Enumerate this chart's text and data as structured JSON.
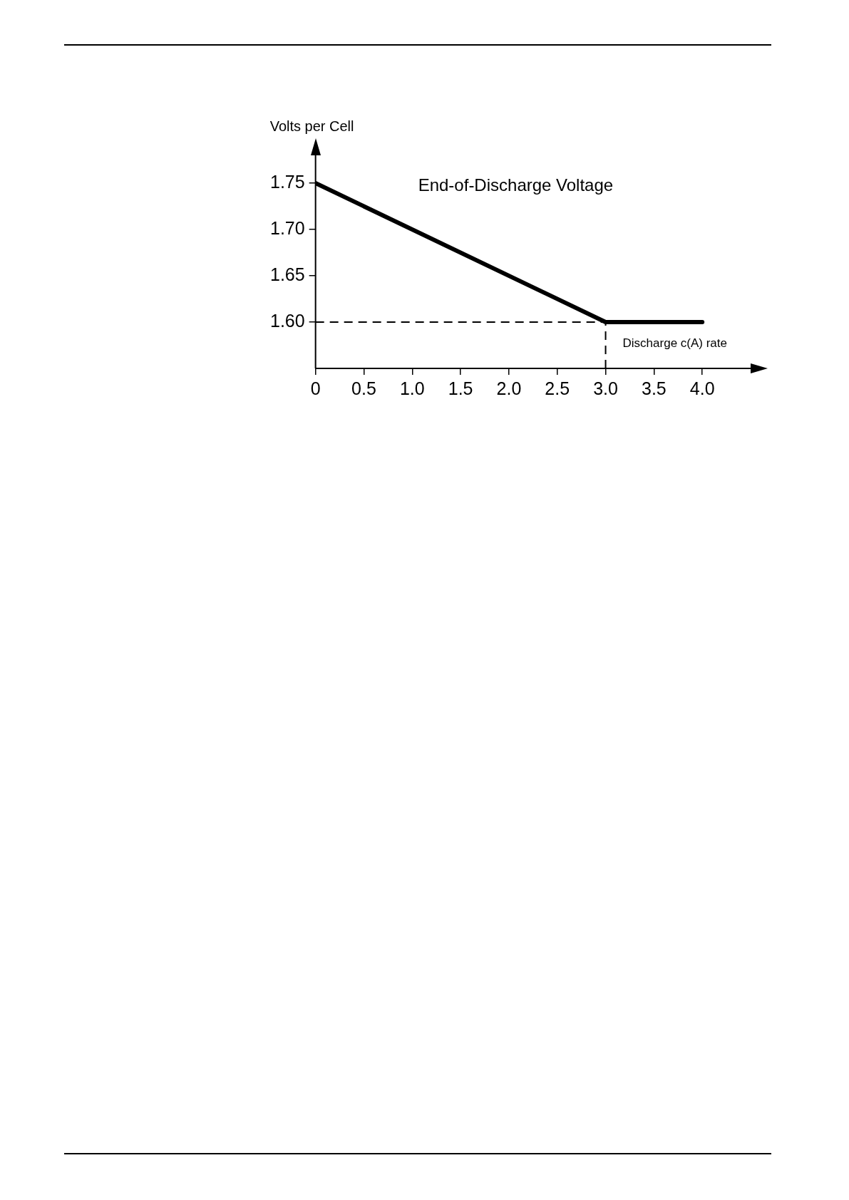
{
  "chart_data": {
    "type": "line",
    "title": "End-of-Discharge Voltage",
    "xlabel": "Discharge c(A) rate",
    "ylabel": "Volts per Cell",
    "x": [
      0,
      3.0,
      4.0
    ],
    "series": [
      {
        "color": "#000000",
        "values": [
          1.75,
          1.6,
          1.6
        ]
      }
    ],
    "xlim": [
      0,
      4.5
    ],
    "xticks": [
      0,
      {
        "value": 0.5,
        "label": "0.5"
      },
      {
        "value": 1,
        "label": "1.0"
      },
      {
        "value": 1.5,
        "label": "1.5"
      },
      {
        "value": 2,
        "label": "2.0"
      },
      {
        "value": 2.5,
        "label": "2.5"
      },
      {
        "value": 3,
        "label": "3.0"
      },
      {
        "value": 3.5,
        "label": "3.5"
      },
      {
        "value": 4,
        "label": "4.0"
      }
    ],
    "ylim": [
      1.55,
      1.78
    ],
    "yticks": [
      {
        "value": 1.6,
        "label": "1.60"
      },
      {
        "value": 1.65,
        "label": "1.65"
      },
      {
        "value": 1.7,
        "label": "1.70"
      },
      {
        "value": 1.75,
        "label": "1.75"
      }
    ],
    "ref_lines": [
      {
        "axis": "y",
        "value": 1.6,
        "line_style": "dashed",
        "color": "#000000"
      },
      {
        "axis": "x",
        "value": 3.0,
        "line_style": "dashed",
        "color": "#000000"
      }
    ],
    "grid": false,
    "legend": false,
    "marker": "none",
    "line_style": "solid"
  }
}
